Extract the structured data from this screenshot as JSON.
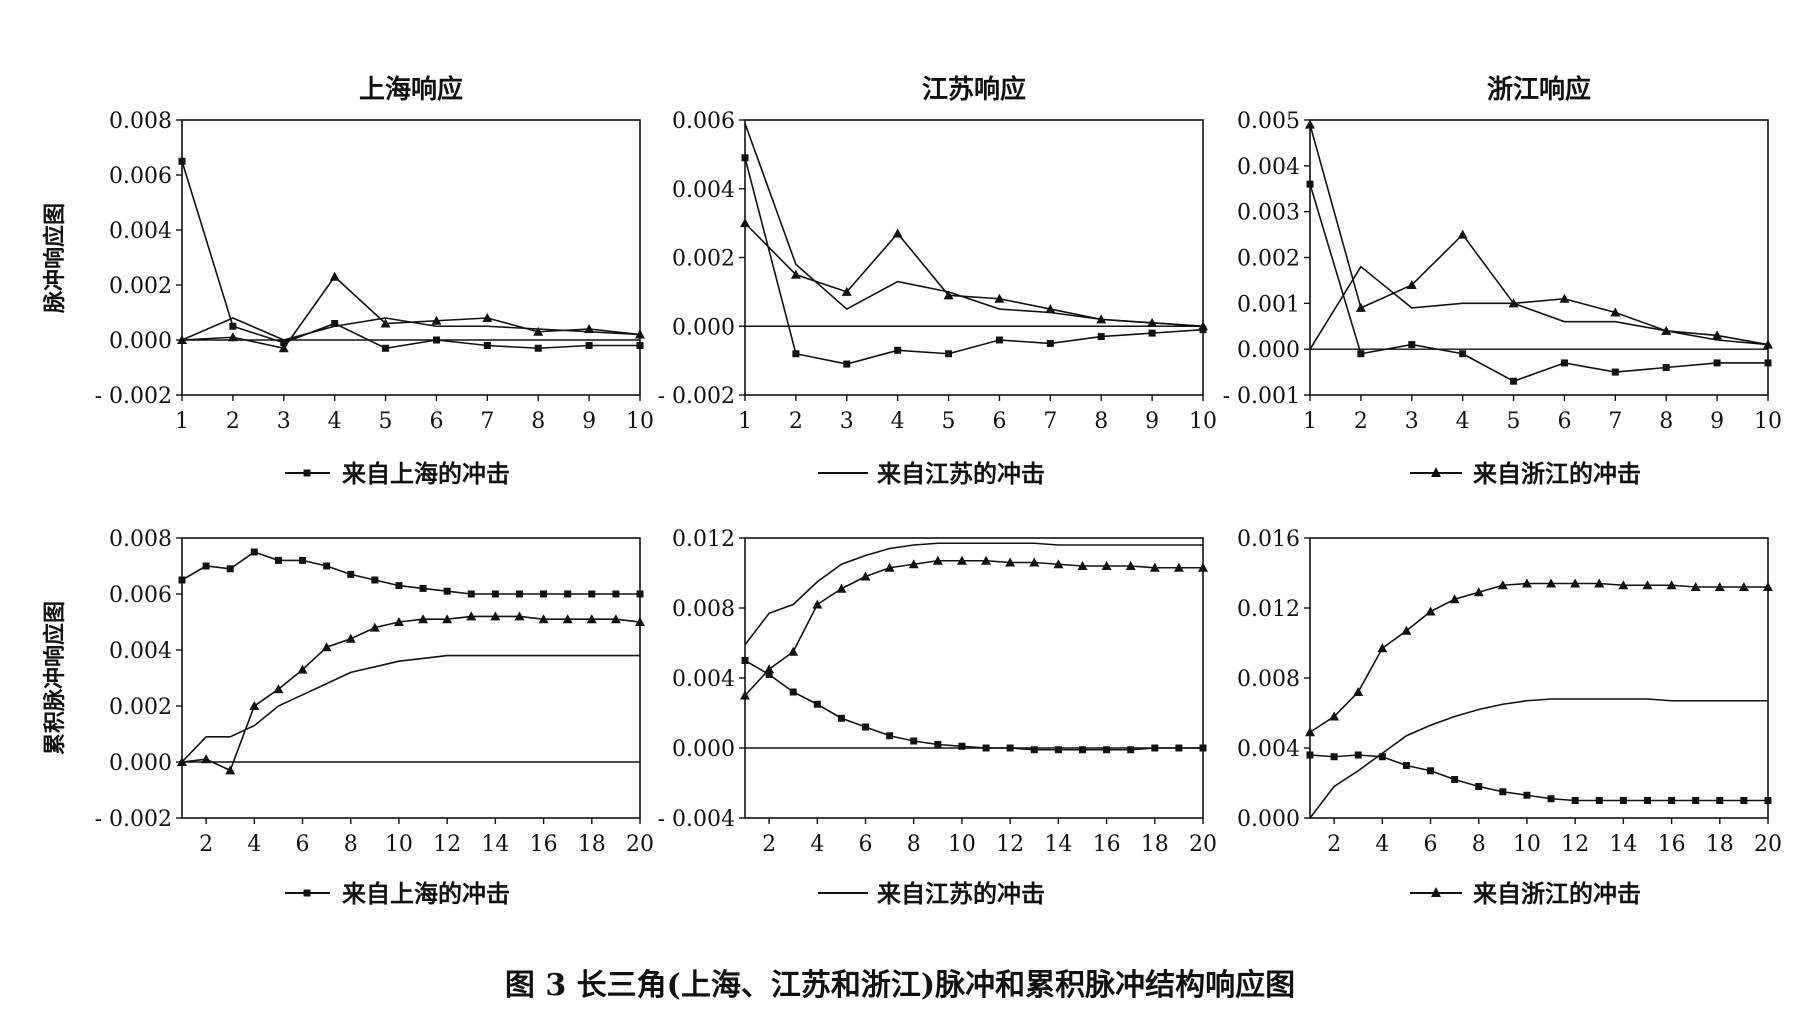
{
  "caption": "图 3   长三角(上海、江苏和浙江)脉冲和累积脉冲结构响应图",
  "row_labels": [
    "脉冲响应图",
    "累积脉冲响应图"
  ],
  "legend": {
    "shanghai": "来自上海的冲击",
    "jiangsu": "来自江苏的冲击",
    "zhejiang": "来自浙江的冲击"
  },
  "series_style": {
    "shanghai": "square-marker",
    "jiangsu": "plain-line",
    "zhejiang": "triangle-marker"
  },
  "chart_data": [
    {
      "type": "line",
      "row": 0,
      "col": 0,
      "title": "上海响应",
      "x": [
        1,
        2,
        3,
        4,
        5,
        6,
        7,
        8,
        9,
        10
      ],
      "xticks": [
        1,
        2,
        3,
        4,
        5,
        6,
        7,
        8,
        9,
        10
      ],
      "ylim": [
        -0.002,
        0.008
      ],
      "yticks": [
        -0.002,
        0.0,
        0.002,
        0.004,
        0.006,
        0.008
      ],
      "ytick_labels": [
        "- 0.002",
        "0.000",
        "0.002",
        "0.004",
        "0.006",
        "0.008"
      ],
      "grid": false,
      "series": [
        {
          "key": "shanghai",
          "values": [
            0.0065,
            0.0005,
            -0.0001,
            0.0006,
            -0.0003,
            0.0,
            -0.0002,
            -0.0003,
            -0.0002,
            -0.0002
          ]
        },
        {
          "key": "jiangsu",
          "values": [
            0.0,
            0.0008,
            0.0,
            0.0005,
            0.0008,
            0.0005,
            0.0005,
            0.0004,
            0.0003,
            0.0002
          ]
        },
        {
          "key": "zhejiang",
          "values": [
            0.0,
            0.0001,
            -0.0003,
            0.0023,
            0.0006,
            0.0007,
            0.0008,
            0.0003,
            0.0004,
            0.0002
          ]
        }
      ]
    },
    {
      "type": "line",
      "row": 0,
      "col": 1,
      "title": "江苏响应",
      "x": [
        1,
        2,
        3,
        4,
        5,
        6,
        7,
        8,
        9,
        10
      ],
      "xticks": [
        1,
        2,
        3,
        4,
        5,
        6,
        7,
        8,
        9,
        10
      ],
      "ylim": [
        -0.002,
        0.006
      ],
      "yticks": [
        -0.002,
        0.0,
        0.002,
        0.004,
        0.006
      ],
      "ytick_labels": [
        "- 0.002",
        "0.000",
        "0.002",
        "0.004",
        "0.006"
      ],
      "grid": false,
      "series": [
        {
          "key": "shanghai",
          "values": [
            0.0049,
            -0.0008,
            -0.0011,
            -0.0007,
            -0.0008,
            -0.0004,
            -0.0005,
            -0.0003,
            -0.0002,
            -0.0001
          ]
        },
        {
          "key": "jiangsu",
          "values": [
            0.0059,
            0.0018,
            0.0005,
            0.0013,
            0.001,
            0.0005,
            0.0004,
            0.0002,
            0.0001,
            0.0
          ]
        },
        {
          "key": "zhejiang",
          "values": [
            0.003,
            0.0015,
            0.001,
            0.0027,
            0.0009,
            0.0008,
            0.0005,
            0.0002,
            0.0001,
            0.0
          ]
        }
      ]
    },
    {
      "type": "line",
      "row": 0,
      "col": 2,
      "title": "浙江响应",
      "x": [
        1,
        2,
        3,
        4,
        5,
        6,
        7,
        8,
        9,
        10
      ],
      "xticks": [
        1,
        2,
        3,
        4,
        5,
        6,
        7,
        8,
        9,
        10
      ],
      "ylim": [
        -0.001,
        0.005
      ],
      "yticks": [
        -0.001,
        0.0,
        0.001,
        0.002,
        0.003,
        0.004,
        0.005
      ],
      "ytick_labels": [
        "- 0.001",
        "0.000",
        "0.001",
        "0.002",
        "0.003",
        "0.004",
        "0.005"
      ],
      "grid": false,
      "series": [
        {
          "key": "shanghai",
          "values": [
            0.0036,
            -0.0001,
            0.0001,
            -0.0001,
            -0.0007,
            -0.0003,
            -0.0005,
            -0.0004,
            -0.0003,
            -0.0003
          ]
        },
        {
          "key": "jiangsu",
          "values": [
            0.0,
            0.0018,
            0.0009,
            0.001,
            0.001,
            0.0006,
            0.0006,
            0.0004,
            0.0002,
            0.0001
          ]
        },
        {
          "key": "zhejiang",
          "values": [
            0.0049,
            0.0009,
            0.0014,
            0.0025,
            0.001,
            0.0011,
            0.0008,
            0.0004,
            0.0003,
            0.0001
          ]
        }
      ]
    },
    {
      "type": "line",
      "row": 1,
      "col": 0,
      "title": "",
      "x": [
        1,
        2,
        3,
        4,
        5,
        6,
        7,
        8,
        9,
        10,
        11,
        12,
        13,
        14,
        15,
        16,
        17,
        18,
        19,
        20
      ],
      "xticks": [
        2,
        4,
        6,
        8,
        10,
        12,
        14,
        16,
        18,
        20
      ],
      "ylim": [
        -0.002,
        0.008
      ],
      "yticks": [
        -0.002,
        0.0,
        0.002,
        0.004,
        0.006,
        0.008
      ],
      "ytick_labels": [
        "- 0.002",
        "0.000",
        "0.002",
        "0.004",
        "0.006",
        "0.008"
      ],
      "grid": false,
      "series": [
        {
          "key": "shanghai",
          "values": [
            0.0065,
            0.007,
            0.0069,
            0.0075,
            0.0072,
            0.0072,
            0.007,
            0.0067,
            0.0065,
            0.0063,
            0.0062,
            0.0061,
            0.006,
            0.006,
            0.006,
            0.006,
            0.006,
            0.006,
            0.006,
            0.006
          ]
        },
        {
          "key": "jiangsu",
          "values": [
            0.0,
            0.0009,
            0.0009,
            0.0013,
            0.002,
            0.0024,
            0.0028,
            0.0032,
            0.0034,
            0.0036,
            0.0037,
            0.0038,
            0.0038,
            0.0038,
            0.0038,
            0.0038,
            0.0038,
            0.0038,
            0.0038,
            0.0038
          ]
        },
        {
          "key": "zhejiang",
          "values": [
            0.0,
            0.0001,
            -0.0003,
            0.002,
            0.0026,
            0.0033,
            0.0041,
            0.0044,
            0.0048,
            0.005,
            0.0051,
            0.0051,
            0.0052,
            0.0052,
            0.0052,
            0.0051,
            0.0051,
            0.0051,
            0.0051,
            0.005
          ]
        }
      ]
    },
    {
      "type": "line",
      "row": 1,
      "col": 1,
      "title": "",
      "x": [
        1,
        2,
        3,
        4,
        5,
        6,
        7,
        8,
        9,
        10,
        11,
        12,
        13,
        14,
        15,
        16,
        17,
        18,
        19,
        20
      ],
      "xticks": [
        2,
        4,
        6,
        8,
        10,
        12,
        14,
        16,
        18,
        20
      ],
      "ylim": [
        -0.004,
        0.012
      ],
      "yticks": [
        -0.004,
        0.0,
        0.004,
        0.008,
        0.012
      ],
      "ytick_labels": [
        "- 0.004",
        "0.000",
        "0.004",
        "0.008",
        "0.012"
      ],
      "grid": false,
      "series": [
        {
          "key": "shanghai",
          "values": [
            0.005,
            0.0042,
            0.0032,
            0.0025,
            0.0017,
            0.0012,
            0.0007,
            0.0004,
            0.0002,
            0.0001,
            0.0,
            0.0,
            -0.0001,
            -0.0001,
            -0.0001,
            -0.0001,
            -0.0001,
            0.0,
            0.0,
            0.0
          ]
        },
        {
          "key": "jiangsu",
          "values": [
            0.0059,
            0.0077,
            0.0082,
            0.0095,
            0.0105,
            0.011,
            0.0114,
            0.0116,
            0.0117,
            0.0117,
            0.0117,
            0.0117,
            0.0117,
            0.0116,
            0.0116,
            0.0116,
            0.0116,
            0.0116,
            0.0116,
            0.0116
          ]
        },
        {
          "key": "zhejiang",
          "values": [
            0.003,
            0.0045,
            0.0055,
            0.0082,
            0.0091,
            0.0098,
            0.0103,
            0.0105,
            0.0107,
            0.0107,
            0.0107,
            0.0106,
            0.0106,
            0.0105,
            0.0104,
            0.0104,
            0.0104,
            0.0103,
            0.0103,
            0.0103
          ]
        }
      ]
    },
    {
      "type": "line",
      "row": 1,
      "col": 2,
      "title": "",
      "x": [
        1,
        2,
        3,
        4,
        5,
        6,
        7,
        8,
        9,
        10,
        11,
        12,
        13,
        14,
        15,
        16,
        17,
        18,
        19,
        20
      ],
      "xticks": [
        2,
        4,
        6,
        8,
        10,
        12,
        14,
        16,
        18,
        20
      ],
      "ylim": [
        0.0,
        0.016
      ],
      "yticks": [
        0.0,
        0.004,
        0.008,
        0.012,
        0.016
      ],
      "ytick_labels": [
        "0.000",
        "0.004",
        "0.008",
        "0.012",
        "0.016"
      ],
      "grid": false,
      "series": [
        {
          "key": "shanghai",
          "values": [
            0.0036,
            0.0035,
            0.0036,
            0.0035,
            0.003,
            0.0027,
            0.0022,
            0.0018,
            0.0015,
            0.0013,
            0.0011,
            0.001,
            0.001,
            0.001,
            0.001,
            0.001,
            0.001,
            0.001,
            0.001,
            0.001
          ]
        },
        {
          "key": "jiangsu",
          "values": [
            0.0,
            0.0018,
            0.0027,
            0.0037,
            0.0047,
            0.0053,
            0.0058,
            0.0062,
            0.0065,
            0.0067,
            0.0068,
            0.0068,
            0.0068,
            0.0068,
            0.0068,
            0.0067,
            0.0067,
            0.0067,
            0.0067,
            0.0067
          ]
        },
        {
          "key": "zhejiang",
          "values": [
            0.0049,
            0.0058,
            0.0072,
            0.0097,
            0.0107,
            0.0118,
            0.0125,
            0.0129,
            0.0133,
            0.0134,
            0.0134,
            0.0134,
            0.0134,
            0.0133,
            0.0133,
            0.0133,
            0.0132,
            0.0132,
            0.0132,
            0.0132
          ]
        }
      ]
    }
  ]
}
